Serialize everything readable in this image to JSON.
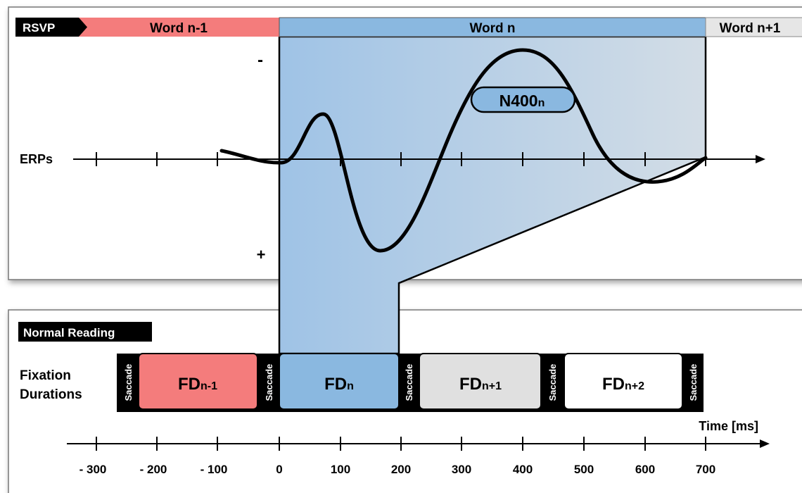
{
  "top_panel": {
    "badge": "RSVP",
    "word_prev": "Word n-1",
    "word_curr": "Word n",
    "word_next": "Word n+1",
    "minus": "-",
    "plus": "+",
    "erp_label": "ERPs",
    "n400_base": "N400",
    "n400_sub": "n"
  },
  "bottom_panel": {
    "badge": "Normal Reading",
    "fixation_label_line1": "Fixation",
    "fixation_label_line2": "Durations",
    "saccade": "Saccade",
    "fd": [
      {
        "base": "FD",
        "sub": "n-1"
      },
      {
        "base": "FD",
        "sub": "n"
      },
      {
        "base": "FD",
        "sub": "n+1"
      },
      {
        "base": "FD",
        "sub": "n+2"
      }
    ],
    "time_label": "Time [ms]",
    "ticks": [
      "- 300",
      "- 200",
      "- 100",
      "0",
      "100",
      "200",
      "300",
      "400",
      "500",
      "600",
      "700"
    ]
  },
  "colors": {
    "red": "#f47c7c",
    "blue": "#8ab8e0",
    "gray": "#e0e0e0",
    "black": "#000000"
  }
}
